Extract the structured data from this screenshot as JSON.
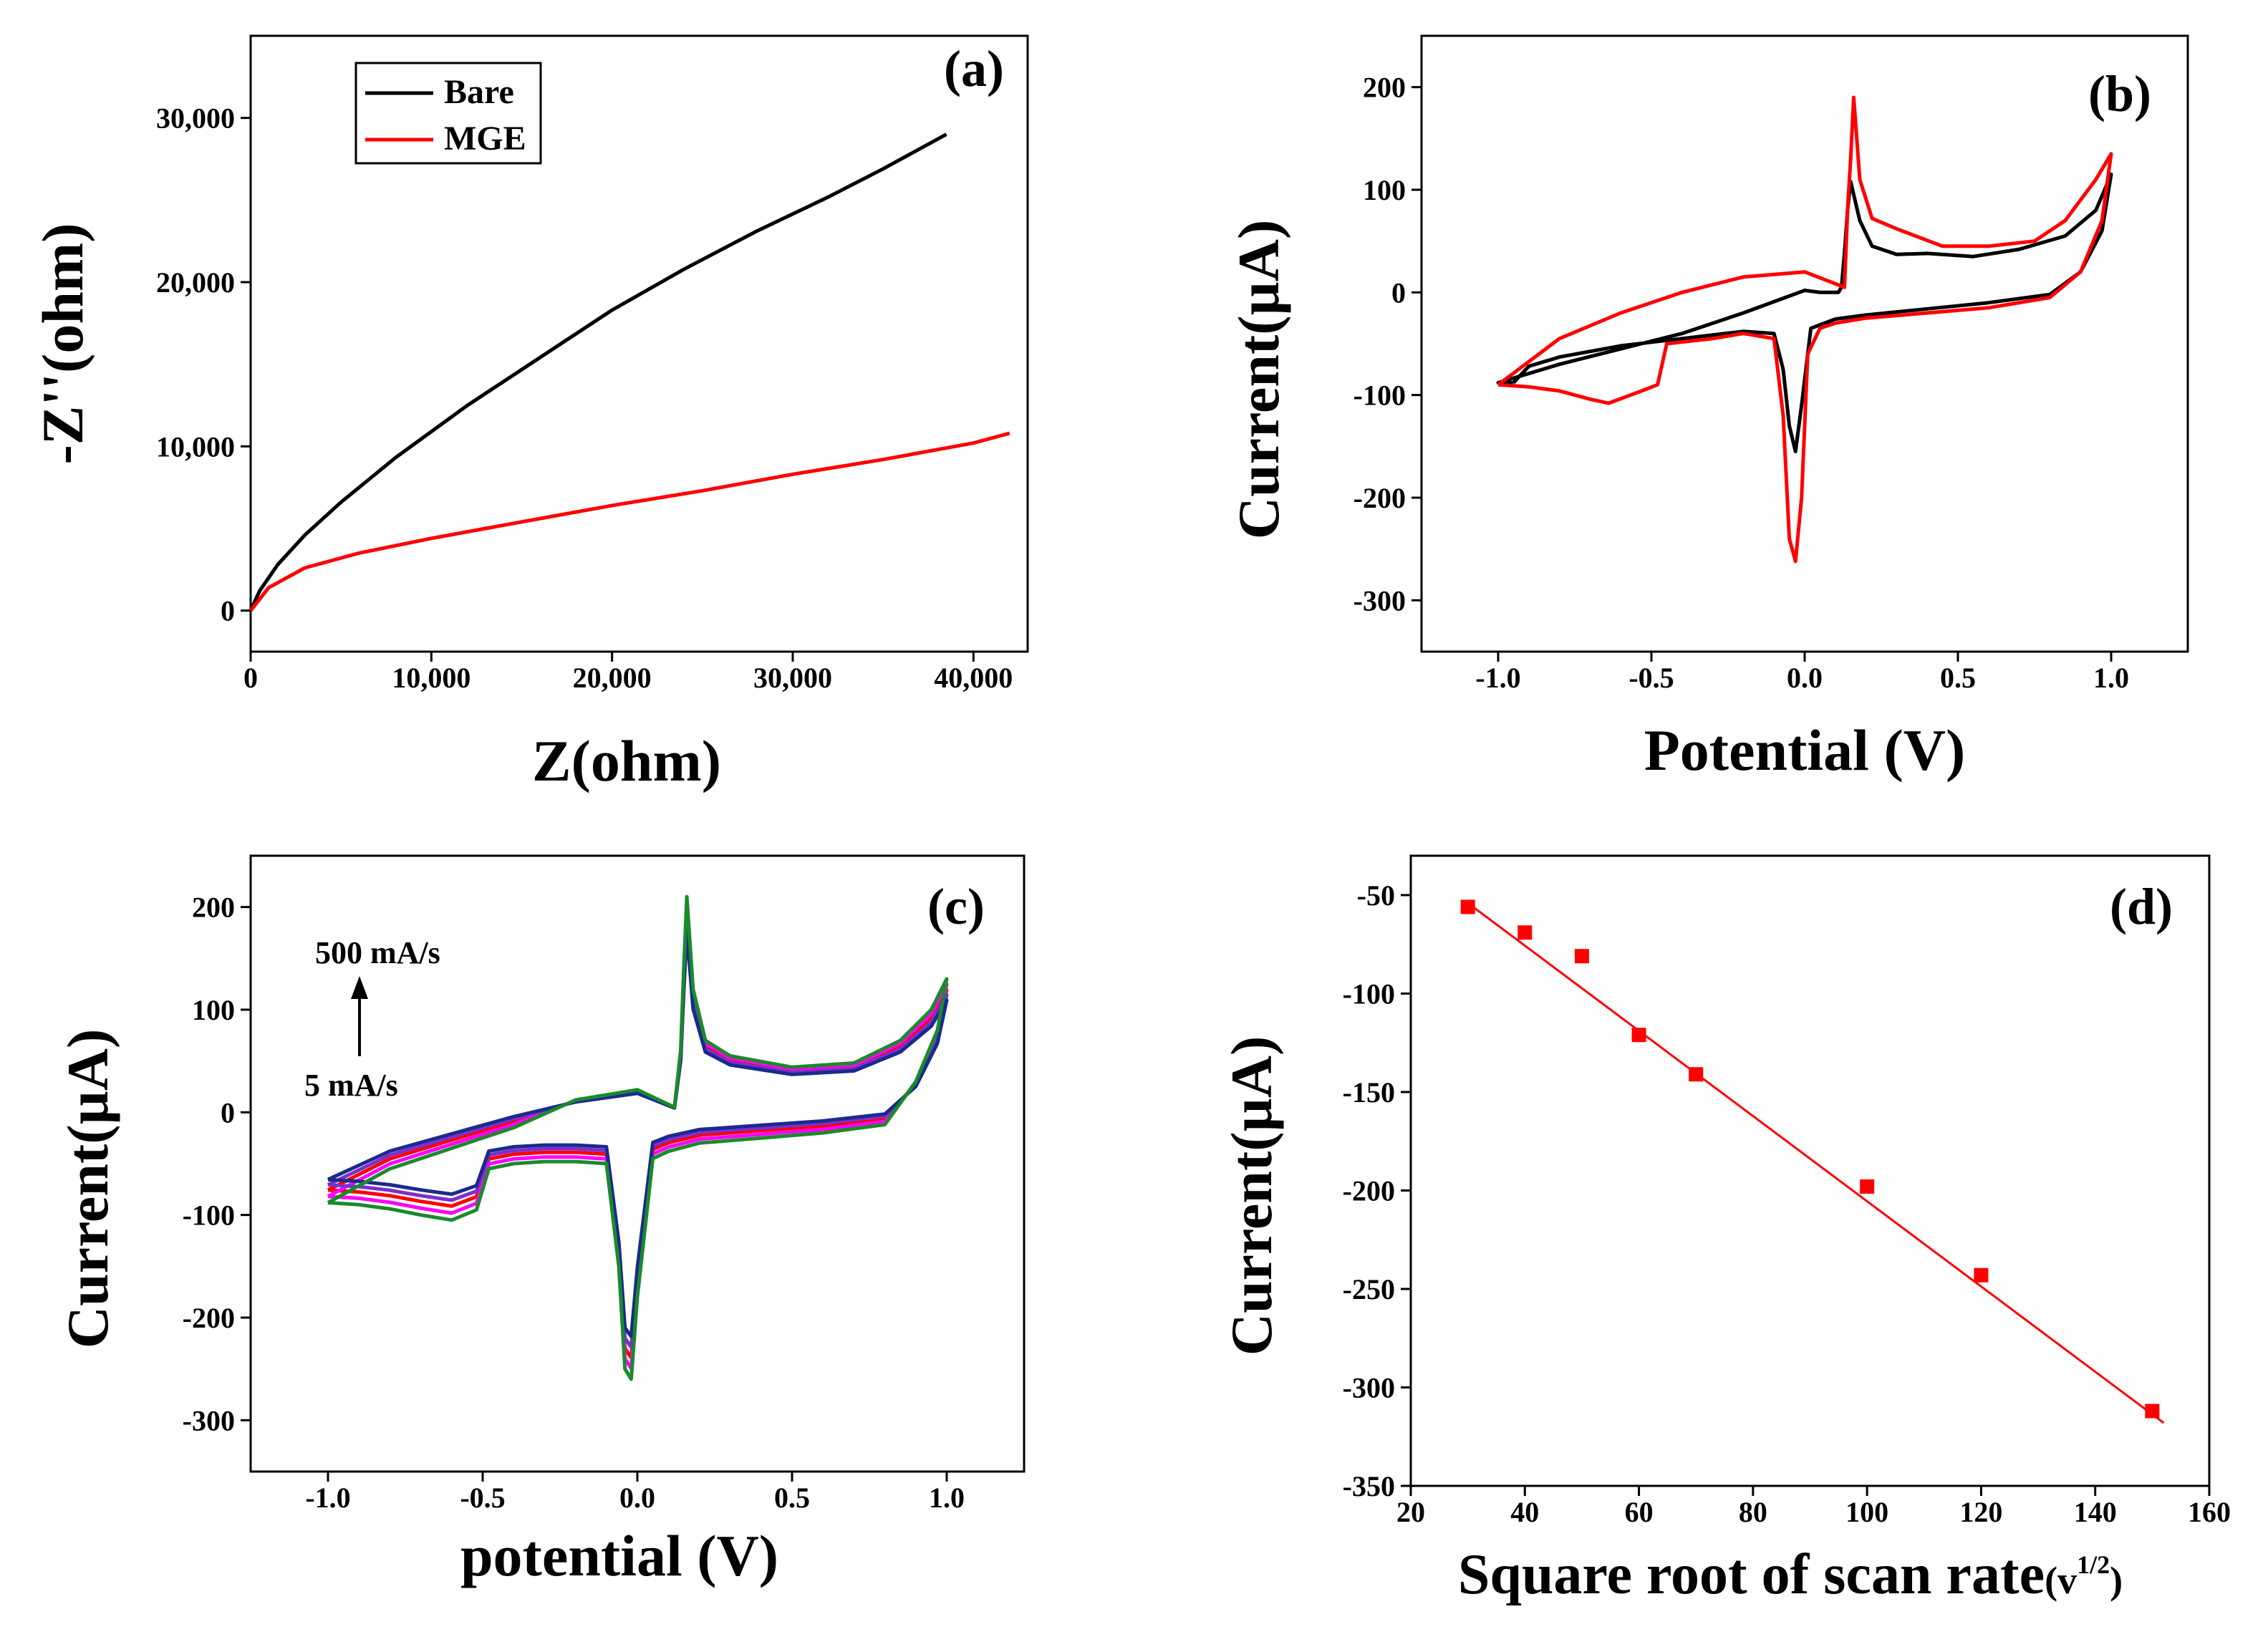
{
  "chart_data": [
    {
      "panel": "(a)",
      "type": "line",
      "xlabel": "Z(ohm)",
      "ylabel": "-Z''(ohm)",
      "xlim": [
        0,
        43000
      ],
      "ylim": [
        -2500,
        35000
      ],
      "xticks": [
        0,
        10000,
        20000,
        30000,
        40000
      ],
      "xtick_labels": [
        "0",
        "10,000",
        "20,000",
        "30,000",
        "40,000"
      ],
      "yticks": [
        0,
        10000,
        20000,
        30000
      ],
      "ytick_labels": [
        "0",
        "10,000",
        "20,000",
        "30,000"
      ],
      "legend_position": "top-left",
      "series": [
        {
          "name": "Bare",
          "color": "#000000",
          "x": [
            0,
            500,
            1500,
            3000,
            5000,
            8000,
            12000,
            16000,
            20000,
            24000,
            28000,
            32000,
            35000,
            38500
          ],
          "y": [
            0,
            1200,
            2800,
            4600,
            6600,
            9300,
            12500,
            15400,
            18300,
            20800,
            23100,
            25200,
            26900,
            29000
          ]
        },
        {
          "name": "MGE",
          "color": "#ff0000",
          "x": [
            0,
            1000,
            3000,
            6000,
            10000,
            15000,
            20000,
            25000,
            30000,
            35000,
            40000,
            42000
          ],
          "y": [
            0,
            1400,
            2600,
            3500,
            4400,
            5400,
            6400,
            7300,
            8300,
            9200,
            10200,
            10800
          ]
        }
      ]
    },
    {
      "panel": "(b)",
      "type": "line",
      "xlabel": "Potential (V)",
      "ylabel": "Current(µA)",
      "xlim": [
        -1.25,
        1.25
      ],
      "ylim": [
        -350,
        250
      ],
      "xticks": [
        -1.0,
        -0.5,
        0.0,
        0.5,
        1.0
      ],
      "xtick_labels": [
        "-1.0",
        "-0.5",
        "0.0",
        "0.5",
        "1.0"
      ],
      "yticks": [
        -300,
        -200,
        -100,
        0,
        100,
        200
      ],
      "ytick_labels": [
        "-300",
        "-200",
        "-100",
        "0",
        "100",
        "200"
      ],
      "series": [
        {
          "color": "#000000",
          "x": [
            -0.95,
            -0.9,
            -0.8,
            -0.6,
            -0.4,
            -0.2,
            -0.1,
            -0.07,
            -0.05,
            -0.03,
            -0.01,
            0.02,
            0.1,
            0.2,
            0.4,
            0.6,
            0.8,
            0.9,
            0.97,
            1.0,
            0.95,
            0.85,
            0.7,
            0.55,
            0.4,
            0.3,
            0.22,
            0.18,
            0.15,
            0.14,
            0.13,
            0.12,
            0.11,
            0.05,
            0.0,
            -0.2,
            -0.4,
            -0.6,
            -0.8,
            -1.0,
            -0.95
          ],
          "y": [
            -88,
            -72,
            -63,
            -52,
            -45,
            -38,
            -40,
            -75,
            -130,
            -155,
            -110,
            -35,
            -26,
            -22,
            -16,
            -10,
            -2,
            20,
            60,
            115,
            80,
            55,
            42,
            35,
            38,
            37,
            45,
            70,
            108,
            80,
            38,
            5,
            0,
            0,
            2,
            -20,
            -40,
            -55,
            -70,
            -88,
            -88
          ]
        },
        {
          "color": "#ff0000",
          "x": [
            -1.0,
            -0.9,
            -0.8,
            -0.7,
            -0.64,
            -0.55,
            -0.48,
            -0.45,
            -0.3,
            -0.2,
            -0.1,
            -0.07,
            -0.05,
            -0.03,
            -0.01,
            0.01,
            0.05,
            0.1,
            0.2,
            0.4,
            0.6,
            0.8,
            0.9,
            0.97,
            1.0,
            0.95,
            0.85,
            0.75,
            0.6,
            0.45,
            0.3,
            0.22,
            0.18,
            0.16,
            0.15,
            0.14,
            0.13,
            0.0,
            -0.2,
            -0.4,
            -0.6,
            -0.8,
            -1.0
          ],
          "y": [
            -90,
            -92,
            -96,
            -104,
            -108,
            -98,
            -90,
            -50,
            -45,
            -40,
            -45,
            -120,
            -240,
            -262,
            -200,
            -60,
            -35,
            -30,
            -25,
            -20,
            -15,
            -5,
            20,
            70,
            135,
            110,
            70,
            50,
            45,
            45,
            62,
            72,
            110,
            190,
            130,
            80,
            5,
            20,
            15,
            0,
            -20,
            -45,
            -90
          ]
        }
      ]
    },
    {
      "panel": "(c)",
      "type": "line",
      "xlabel": "potential (V)",
      "ylabel": "Current(µA)",
      "xlim": [
        -1.25,
        1.25
      ],
      "ylim": [
        -350,
        250
      ],
      "xticks": [
        -1.0,
        -0.5,
        0.0,
        0.5,
        1.0
      ],
      "xtick_labels": [
        "-1.0",
        "-0.5",
        "0.0",
        "0.5",
        "1.0"
      ],
      "yticks": [
        -300,
        -200,
        -100,
        0,
        100,
        200
      ],
      "ytick_labels": [
        "-300",
        "-200",
        "-100",
        "0",
        "100",
        "200"
      ],
      "annotations": {
        "upper": "500 mA/s",
        "lower": "5 mA/s"
      },
      "series": [
        {
          "color": "#ff0000",
          "scale": 0.92,
          "offset": -8
        },
        {
          "color": "#ff00ff",
          "scale": 0.96,
          "offset": -14
        },
        {
          "color": "#7b2fd0",
          "scale": 0.88,
          "offset": -4
        },
        {
          "color": "#1a2a8c",
          "scale": 0.84,
          "offset": 0
        },
        {
          "color": "#1a8a2a",
          "scale": 1.0,
          "offset": -20
        }
      ],
      "base_curve": {
        "x": [
          -1.0,
          -0.9,
          -0.8,
          -0.7,
          -0.6,
          -0.52,
          -0.48,
          -0.4,
          -0.3,
          -0.2,
          -0.1,
          -0.06,
          -0.04,
          -0.02,
          0.0,
          0.05,
          0.1,
          0.2,
          0.4,
          0.6,
          0.8,
          0.9,
          0.97,
          1.0,
          0.95,
          0.85,
          0.7,
          0.5,
          0.3,
          0.22,
          0.18,
          0.16,
          0.15,
          0.14,
          0.12,
          0.0,
          -0.2,
          -0.4,
          -0.6,
          -0.8,
          -1.0
        ],
        "y": [
          -78,
          -80,
          -84,
          -90,
          -95,
          -85,
          -45,
          -40,
          -38,
          -38,
          -40,
          -150,
          -250,
          -260,
          -180,
          -35,
          -28,
          -20,
          -15,
          -10,
          -2,
          30,
          80,
          130,
          100,
          70,
          48,
          44,
          55,
          70,
          120,
          210,
          140,
          60,
          5,
          22,
          12,
          -5,
          -25,
          -45,
          -78
        ]
      }
    },
    {
      "panel": "(d)",
      "type": "scatter",
      "xlabel": "Square root of scan rate",
      "xlabel_unit": "(v",
      "xlabel_sup": "1/2",
      "xlabel_close": ")",
      "ylabel": "Current(µA)",
      "xlim": [
        20,
        160
      ],
      "ylim": [
        -350,
        -30
      ],
      "xticks": [
        20,
        40,
        60,
        80,
        100,
        120,
        140,
        160
      ],
      "xtick_labels": [
        "20",
        "40",
        "60",
        "80",
        "100",
        "120",
        "140",
        "160"
      ],
      "yticks": [
        -350,
        -300,
        -250,
        -200,
        -150,
        -100,
        -50
      ],
      "ytick_labels": [
        "-350",
        "-300",
        "-250",
        "-200",
        "-150",
        "-100",
        "-50"
      ],
      "points": {
        "color": "#ff0000",
        "x": [
          30,
          40,
          50,
          60,
          70,
          100,
          120,
          150
        ],
        "y": [
          -56,
          -69,
          -81,
          -121,
          -141,
          -198,
          -243,
          -312
        ]
      },
      "fit": {
        "color": "#ff0000",
        "x": [
          30,
          152
        ],
        "y": [
          -54,
          -318
        ]
      }
    }
  ],
  "panel_labels": [
    "(a)",
    "(b)",
    "(c)",
    "(d)"
  ]
}
